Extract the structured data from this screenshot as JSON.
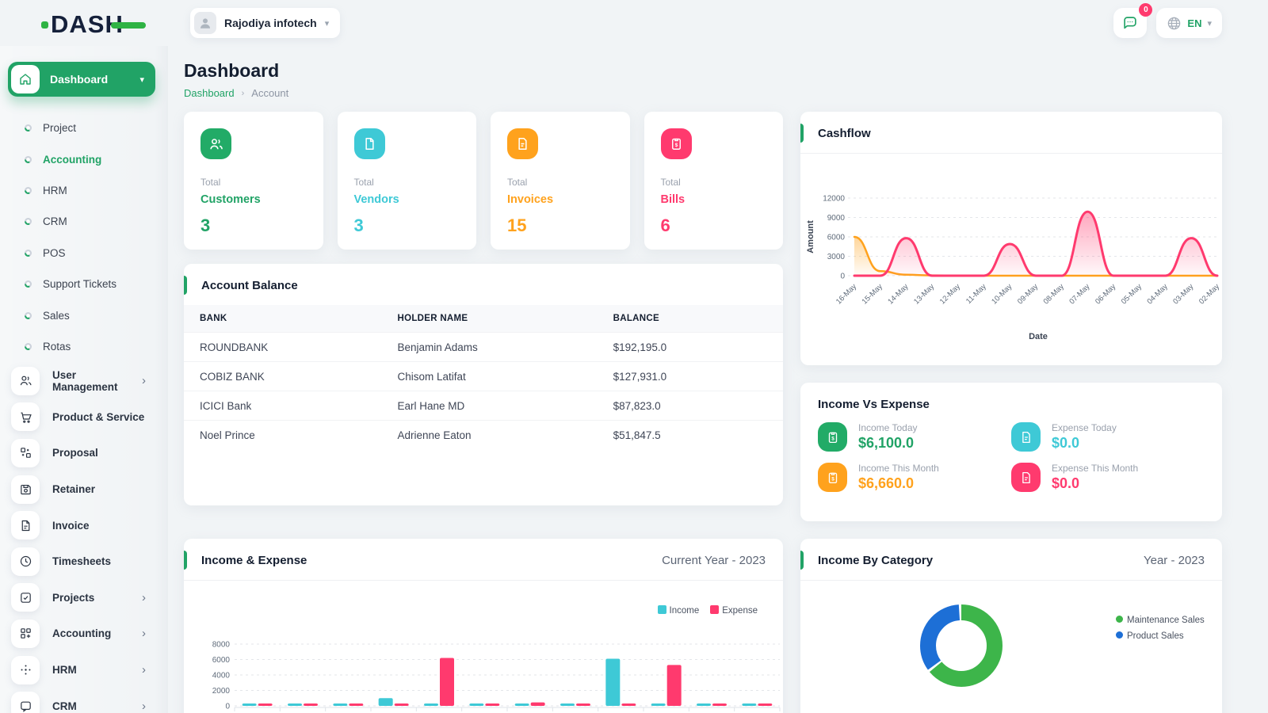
{
  "theme": {
    "green": "#21a366",
    "cyan": "#3ec9d6",
    "orange": "#ffa21d",
    "pink": "#ff3a6e",
    "navy": "#141e30",
    "donut_green": "#3db54a",
    "donut_blue": "#1d6fd6"
  },
  "brand": {
    "logo_text": "DASH"
  },
  "header": {
    "workspace": {
      "name": "Rajodiya infotech"
    },
    "messages": {
      "badge": "0"
    },
    "language": {
      "code": "EN"
    }
  },
  "page": {
    "title": "Dashboard",
    "breadcrumb": {
      "root": "Dashboard",
      "current": "Account"
    }
  },
  "sidebar": {
    "active": {
      "label": "Dashboard"
    },
    "dashboard_children": [
      {
        "label": "Project"
      },
      {
        "label": "Accounting"
      },
      {
        "label": "HRM"
      },
      {
        "label": "CRM"
      },
      {
        "label": "POS"
      },
      {
        "label": "Support Tickets"
      },
      {
        "label": "Sales"
      },
      {
        "label": "Rotas"
      }
    ],
    "menu": [
      {
        "label": "User Management",
        "icon": "users-icon",
        "chevron": true
      },
      {
        "label": "Product & Service",
        "icon": "cart-icon",
        "chevron": false
      },
      {
        "label": "Proposal",
        "icon": "proposal-icon",
        "chevron": false
      },
      {
        "label": "Retainer",
        "icon": "retainer-icon",
        "chevron": false
      },
      {
        "label": "Invoice",
        "icon": "invoice-icon",
        "chevron": false
      },
      {
        "label": "Timesheets",
        "icon": "clock-icon",
        "chevron": false
      },
      {
        "label": "Projects",
        "icon": "check-square-icon",
        "chevron": true
      },
      {
        "label": "Accounting",
        "icon": "grid-plus-icon",
        "chevron": true
      },
      {
        "label": "HRM",
        "icon": "hrm-icon",
        "chevron": true
      },
      {
        "label": "CRM",
        "icon": "chat-square-icon",
        "chevron": true
      }
    ]
  },
  "stats": [
    {
      "label": "Total",
      "name": "Customers",
      "value": "3",
      "color": "#21a366",
      "icon": "users-icon"
    },
    {
      "label": "Total",
      "name": "Vendors",
      "value": "3",
      "color": "#3ec9d6",
      "icon": "file-icon"
    },
    {
      "label": "Total",
      "name": "Invoices",
      "value": "15",
      "color": "#ffa21d",
      "icon": "invoice-file-icon"
    },
    {
      "label": "Total",
      "name": "Bills",
      "value": "6",
      "color": "#ff3a6e",
      "icon": "clipboard-dollar-icon"
    }
  ],
  "account_balance": {
    "title": "Account Balance",
    "columns": [
      "BANK",
      "HOLDER NAME",
      "BALANCE"
    ],
    "rows": [
      [
        "ROUNDBANK",
        "Benjamin Adams",
        "$192,195.0"
      ],
      [
        "COBIZ BANK",
        "Chisom Latifat",
        "$127,931.0"
      ],
      [
        "ICICI Bank",
        "Earl Hane MD",
        "$87,823.0"
      ],
      [
        "Noel Prince",
        "Adrienne Eaton",
        "$51,847.5"
      ]
    ]
  },
  "income_vs_expense": {
    "title": "Income Vs Expense",
    "items": [
      {
        "label": "Income Today",
        "value": "$6,100.0",
        "color": "#21a366",
        "icon": "clipboard-dollar-icon"
      },
      {
        "label": "Expense Today",
        "value": "$0.0",
        "color": "#3ec9d6",
        "icon": "file-icon"
      },
      {
        "label": "Income This Month",
        "value": "$6,660.0",
        "color": "#ffa21d",
        "icon": "clipboard-dollar-icon"
      },
      {
        "label": "Expense This Month",
        "value": "$0.0",
        "color": "#ff3a6e",
        "icon": "file-icon"
      }
    ]
  },
  "panels": {
    "cashflow_title": "Cashflow",
    "income_expense_title": "Income & Expense",
    "income_expense_period": "Current Year - 2023",
    "income_by_category_title": "Income By Category",
    "income_by_category_period": "Year - 2023"
  },
  "chart_data": [
    {
      "type": "area",
      "title": "Cashflow",
      "xlabel": "Date",
      "ylabel": "Amount",
      "ylim": [
        0,
        12000
      ],
      "yticks": [
        0,
        3000,
        6000,
        9000,
        12000
      ],
      "grid": "dashed-horizontal",
      "x": [
        "16-May",
        "15-May",
        "14-May",
        "13-May",
        "12-May",
        "11-May",
        "10-May",
        "09-May",
        "08-May",
        "07-May",
        "06-May",
        "05-May",
        "04-May",
        "03-May",
        "02-May"
      ],
      "series": [
        {
          "name": "series-orange",
          "color": "#ffa21d",
          "values": [
            6000,
            700,
            150,
            50,
            0,
            0,
            0,
            0,
            0,
            0,
            0,
            0,
            0,
            0,
            0
          ]
        },
        {
          "name": "series-pink",
          "color": "#ff3a6e",
          "values": [
            0,
            0,
            5800,
            0,
            0,
            0,
            4900,
            0,
            0,
            9900,
            0,
            0,
            0,
            5800,
            0
          ]
        }
      ]
    },
    {
      "type": "bar",
      "title": "Income & Expense",
      "period": "Current Year - 2023",
      "ylim": [
        0,
        8000
      ],
      "yticks": [
        0,
        2000,
        4000,
        6000,
        8000
      ],
      "grid": "dashed-horizontal",
      "legend_position": "top-right",
      "categories": [
        "",
        "",
        "",
        "",
        "",
        "",
        "",
        "",
        "",
        "",
        "",
        ""
      ],
      "x_axis_labels_cut_off": true,
      "series": [
        {
          "name": "Income",
          "color": "#3ec9d6",
          "values": [
            200,
            150,
            150,
            1000,
            100,
            150,
            200,
            150,
            6100,
            100,
            150,
            100
          ]
        },
        {
          "name": "Expense",
          "color": "#ff3a6e",
          "values": [
            120,
            120,
            120,
            120,
            6200,
            120,
            450,
            120,
            120,
            5300,
            120,
            120
          ]
        }
      ]
    },
    {
      "type": "pie",
      "title": "Income By Category",
      "period": "Year - 2023",
      "style": "donut",
      "labels": [
        "Maintenance Sales",
        "Product Sales"
      ],
      "values_pct": [
        65,
        35
      ],
      "colors": [
        "#3db54a",
        "#1d6fd6"
      ],
      "legend_position": "right"
    }
  ]
}
